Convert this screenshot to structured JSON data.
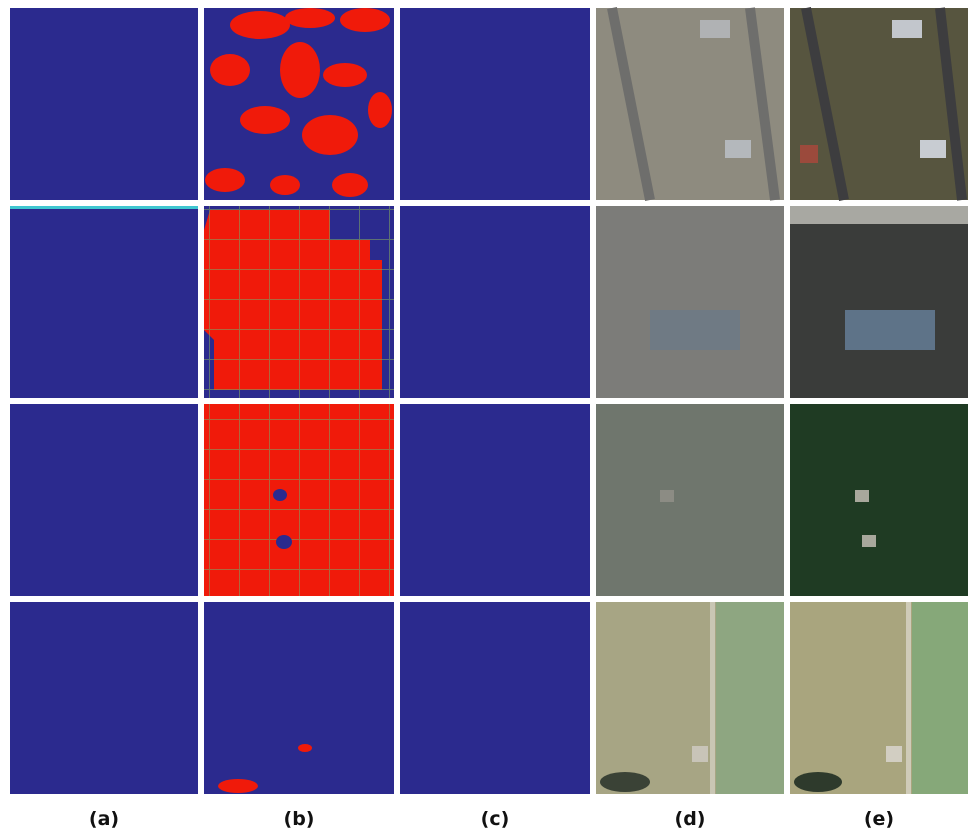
{
  "columns": {
    "labels": [
      "(a)",
      "(b)",
      "(c)",
      "(d)",
      "(e)"
    ]
  }
}
